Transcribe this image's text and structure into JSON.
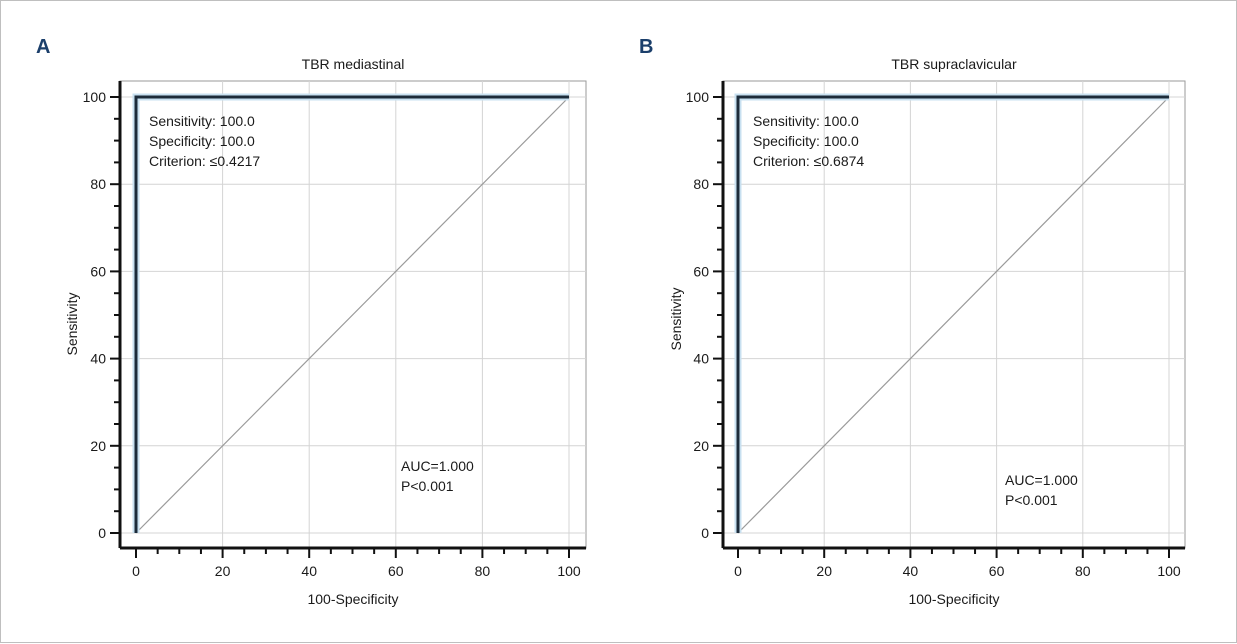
{
  "figure": {
    "panels": [
      {
        "letter": "A"
      },
      {
        "letter": "B"
      }
    ]
  },
  "colors": {
    "roc_line": "#1c2b3a",
    "reference_line": "#9a9a9a",
    "grid": "#d4d4d4",
    "panel_letter": "#1b3f6b"
  },
  "chart_data": [
    {
      "type": "line",
      "title": "TBR mediastinal",
      "xlabel": "100-Specificity",
      "ylabel": "Sensitivity",
      "xlim": [
        0,
        100
      ],
      "ylim": [
        0,
        100
      ],
      "x_ticks": [
        "0",
        "20",
        "40",
        "60",
        "80",
        "100"
      ],
      "y_ticks": [
        "0",
        "20",
        "40",
        "60",
        "80",
        "100"
      ],
      "grid": true,
      "series": [
        {
          "x": [
            0,
            0,
            100
          ],
          "y": [
            0,
            100,
            100
          ]
        },
        {
          "x": [
            0,
            100
          ],
          "y": [
            0,
            100
          ]
        }
      ],
      "annotations": {
        "stats": [
          "Sensitivity: 100.0",
          "Specificity: 100.0",
          "Criterion: ≤0.4217"
        ],
        "auc": [
          "AUC=1.000",
          "P<0.001"
        ]
      }
    },
    {
      "type": "line",
      "title": "TBR supraclavicular",
      "xlabel": "100-Specificity",
      "ylabel": "Sensitivity",
      "xlim": [
        0,
        100
      ],
      "ylim": [
        0,
        100
      ],
      "x_ticks": [
        "0",
        "20",
        "40",
        "60",
        "80",
        "100"
      ],
      "y_ticks": [
        "0",
        "20",
        "40",
        "60",
        "80",
        "100"
      ],
      "grid": true,
      "series": [
        {
          "x": [
            0,
            0,
            100
          ],
          "y": [
            0,
            100,
            100
          ]
        },
        {
          "x": [
            0,
            100
          ],
          "y": [
            0,
            100
          ]
        }
      ],
      "annotations": {
        "stats": [
          "Sensitivity: 100.0",
          "Specificity: 100.0",
          "Criterion: ≤0.6874"
        ],
        "auc": [
          "AUC=1.000",
          "P<0.001"
        ]
      }
    }
  ]
}
